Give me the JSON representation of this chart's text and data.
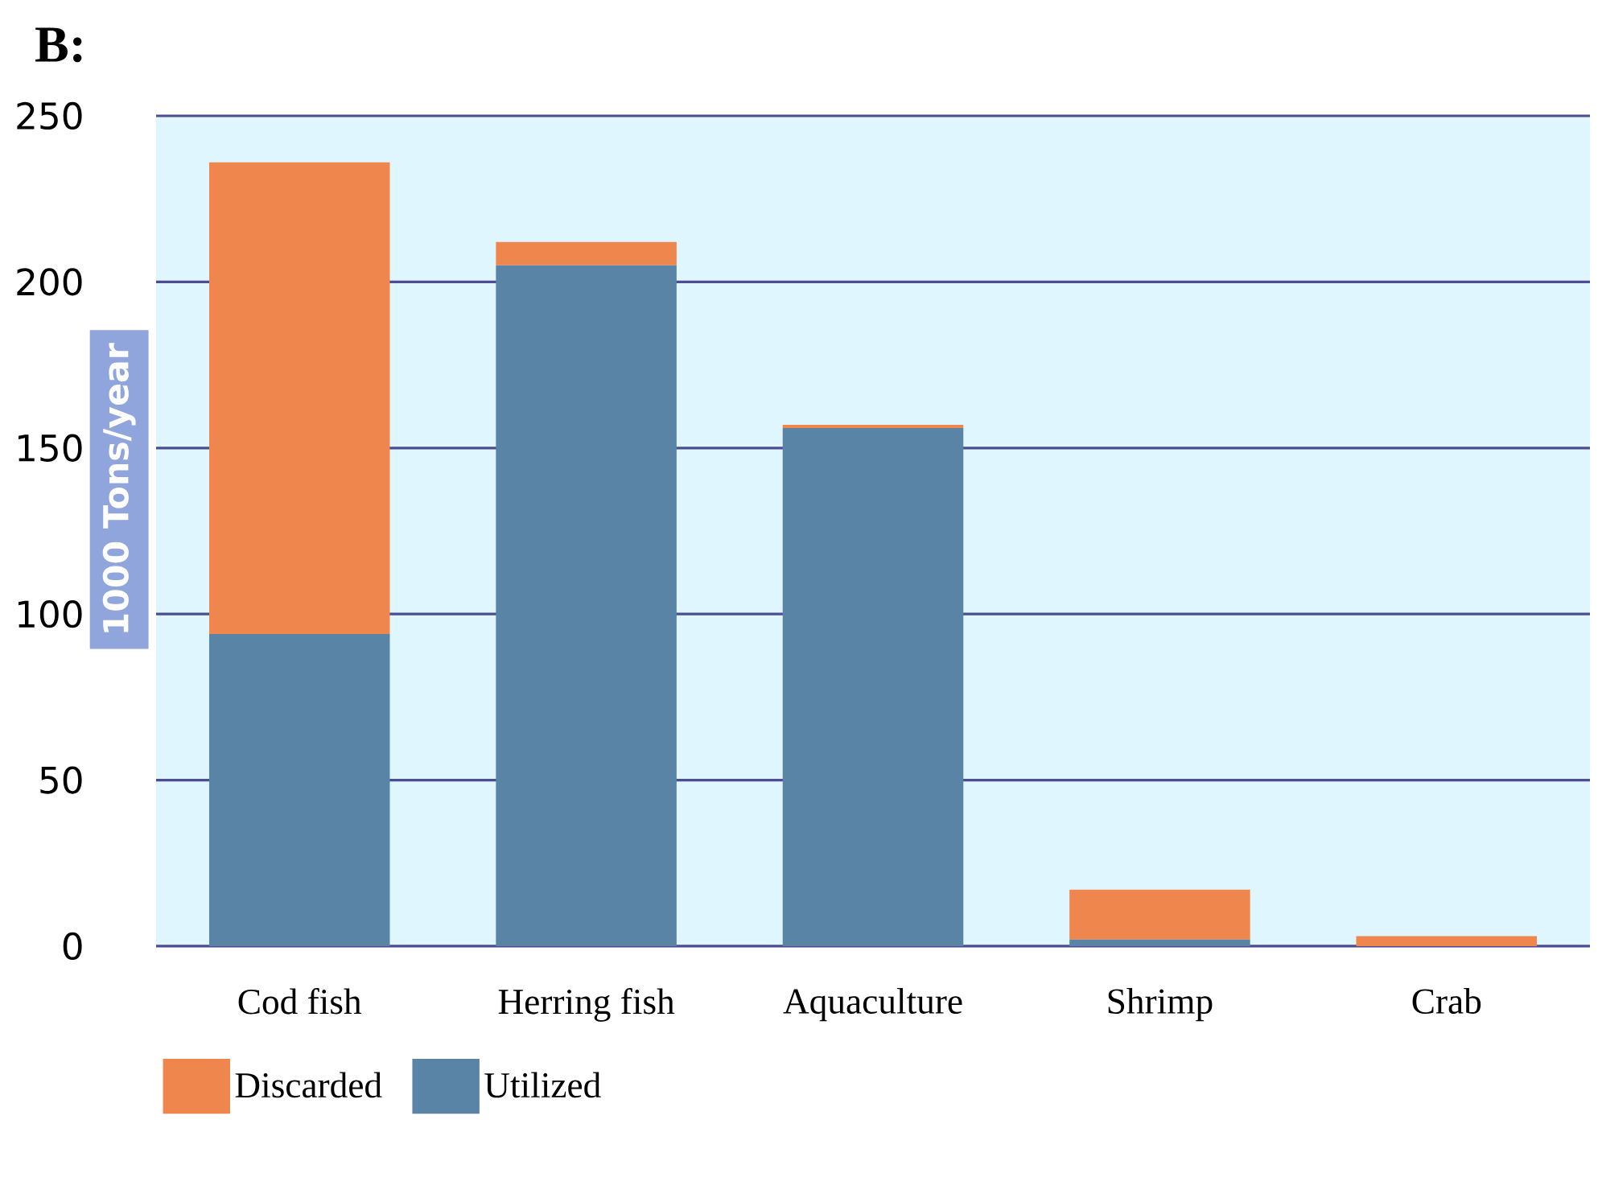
{
  "chart_data": {
    "type": "bar",
    "title": "B:",
    "ylabel": "1000 Tons/year",
    "categories": [
      "Cod fish",
      "Herring fish",
      "Aquaculture",
      "Shrimp",
      "Crab"
    ],
    "stacked": true,
    "series": [
      {
        "name": "Utilized",
        "color": "#5a84a6",
        "values": [
          94,
          205,
          156,
          2,
          0
        ]
      },
      {
        "name": "Discarded",
        "color": "#ef864d",
        "values": [
          142,
          7,
          1,
          15,
          3
        ]
      }
    ],
    "ylim": [
      0,
      250
    ],
    "yticks": [
      0,
      50,
      100,
      150,
      200,
      250
    ],
    "grid": "y",
    "legend": "bottom left"
  }
}
